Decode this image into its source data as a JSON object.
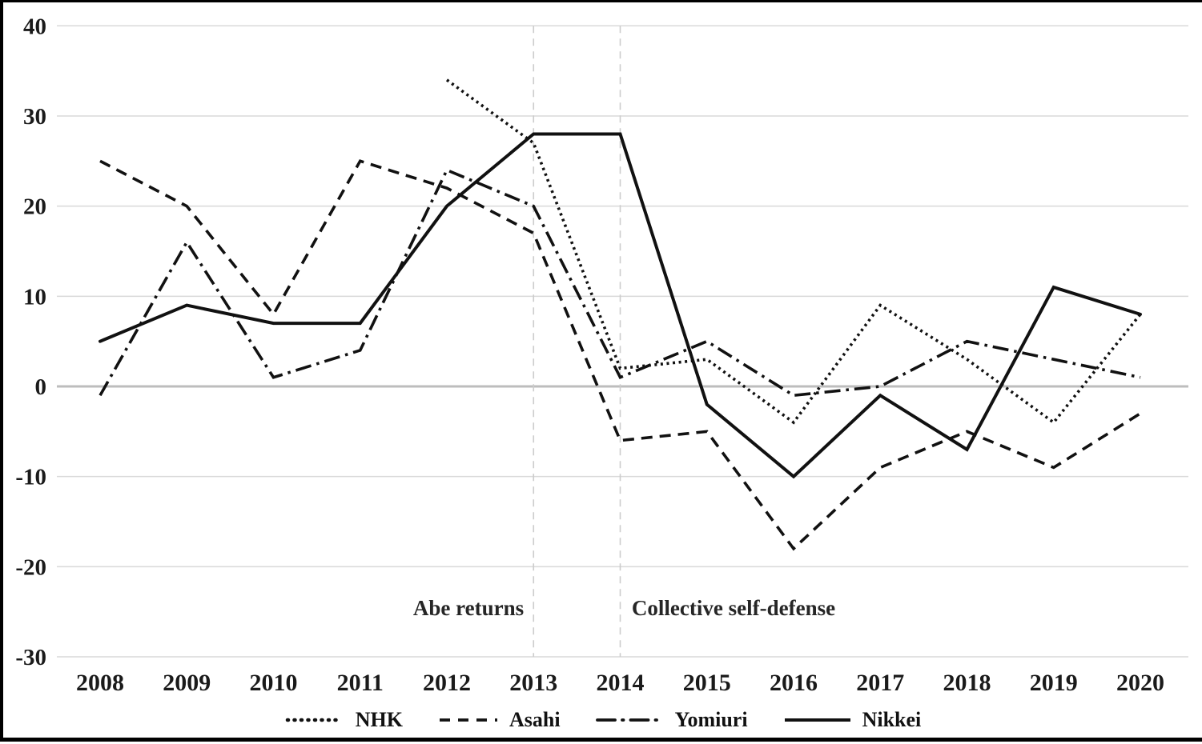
{
  "page": {
    "background": "#ffffff",
    "series_color": "#111111",
    "grid_color": "#d9d9d9",
    "zero_line_color": "#bdbdbd",
    "event_line_color": "#cccccc",
    "text_color": "#1a1a1a"
  },
  "chart_data": {
    "type": "line",
    "x": [
      2008,
      2009,
      2010,
      2011,
      2012,
      2013,
      2014,
      2015,
      2016,
      2017,
      2018,
      2019,
      2020
    ],
    "series": [
      {
        "name": "NHK",
        "style": "dotted",
        "values": [
          null,
          null,
          null,
          null,
          34,
          27,
          2,
          3,
          -4,
          9,
          3,
          -4,
          8
        ]
      },
      {
        "name": "Asahi",
        "style": "dashed",
        "values": [
          25,
          20,
          8,
          25,
          22,
          17,
          -6,
          -5,
          -18,
          -9,
          -5,
          -9,
          -3
        ]
      },
      {
        "name": "Yomiuri",
        "style": "dashdot",
        "values": [
          -1,
          16,
          1,
          4,
          24,
          20,
          1,
          5,
          -1,
          0,
          5,
          3,
          1
        ]
      },
      {
        "name": "Nikkei",
        "style": "solid",
        "values": [
          5,
          9,
          7,
          7,
          20,
          28,
          28,
          -2,
          -10,
          -1,
          -7,
          11,
          8
        ]
      }
    ],
    "y_ticks": [
      40,
      30,
      20,
      10,
      0,
      -10,
      -20,
      -30
    ],
    "ylim": [
      -30,
      40
    ],
    "grid": "horizontal",
    "legend_position": "bottom",
    "annotations": [
      {
        "label": "Abe returns",
        "x": 2013
      },
      {
        "label": "Collective self-defense",
        "x": 2014
      }
    ]
  }
}
